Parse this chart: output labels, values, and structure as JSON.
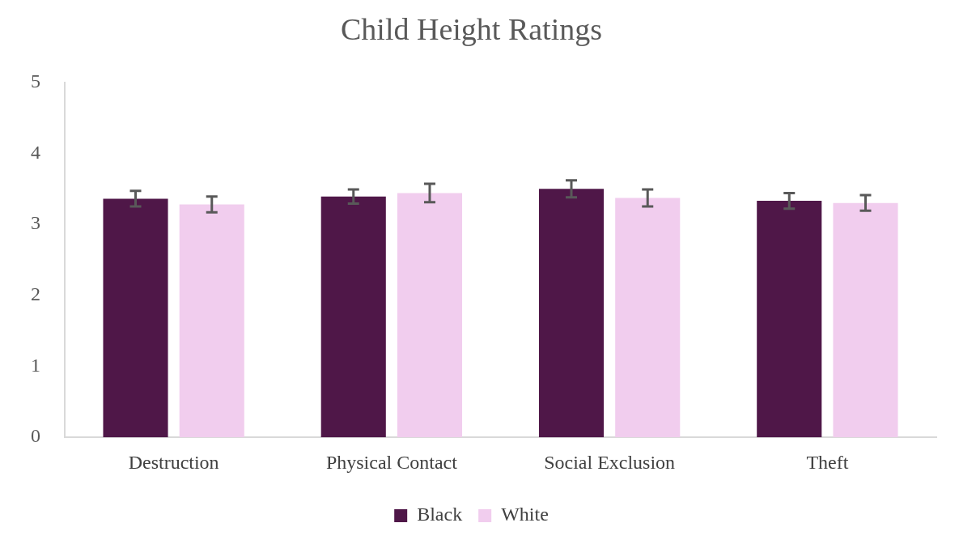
{
  "chart_data": {
    "type": "bar",
    "title": "Child Height Ratings",
    "categories": [
      "Destruction",
      "Physical Contact",
      "Social Exclusion",
      "Theft"
    ],
    "series": [
      {
        "name": "Black",
        "color": "#4f1748",
        "values": [
          3.36,
          3.39,
          3.5,
          3.33
        ],
        "errors": [
          0.11,
          0.1,
          0.12,
          0.11
        ]
      },
      {
        "name": "White",
        "color": "#f1cdee",
        "values": [
          3.28,
          3.44,
          3.37,
          3.3
        ],
        "errors": [
          0.11,
          0.13,
          0.12,
          0.11
        ]
      }
    ],
    "ylim": [
      0,
      5
    ],
    "yticks": [
      0,
      1,
      2,
      3,
      4,
      5
    ],
    "grid": false,
    "legend": "bottom"
  }
}
